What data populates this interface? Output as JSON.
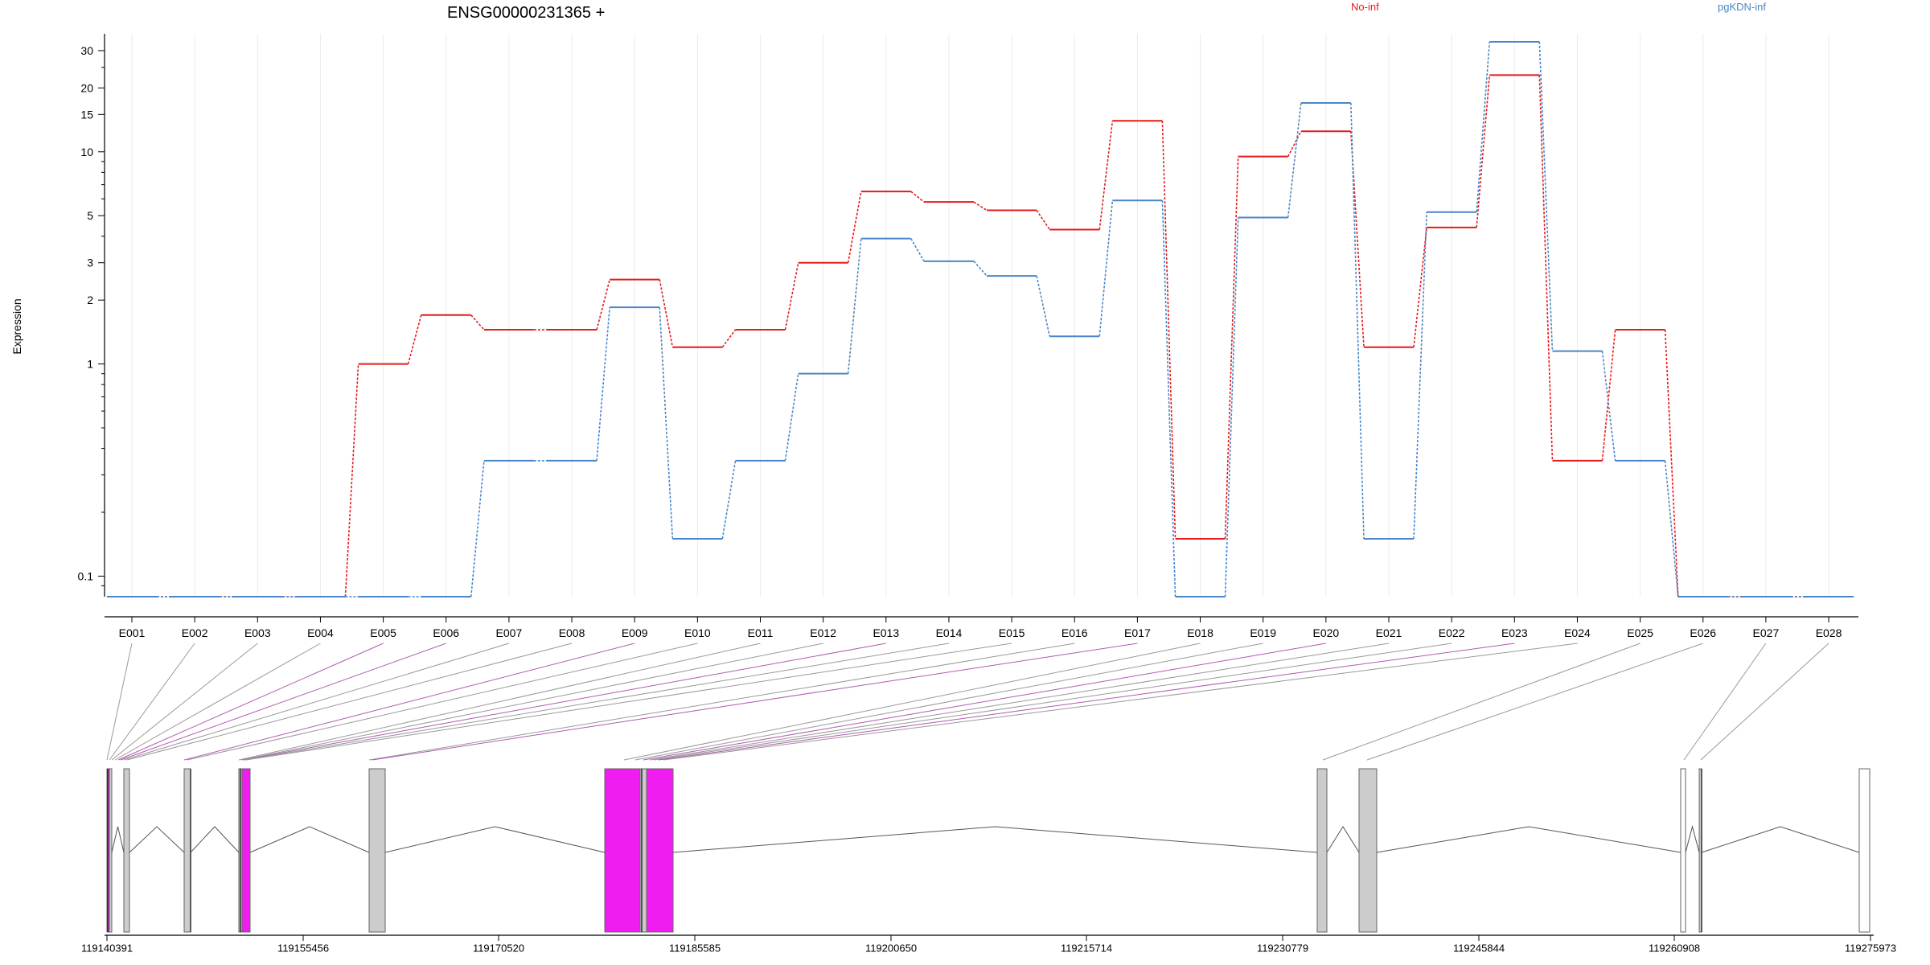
{
  "chart_data": {
    "type": "line",
    "title": "ENSG00000231365 +",
    "ylabel": "Expression",
    "xlabel": "",
    "y_scale": "log",
    "y_ticks": [
      {
        "value": 0.1,
        "label": "0.1"
      },
      {
        "value": 1,
        "label": "1"
      },
      {
        "value": 2,
        "label": "2"
      },
      {
        "value": 3,
        "label": "3"
      },
      {
        "value": 5,
        "label": "5"
      },
      {
        "value": 10,
        "label": "10"
      },
      {
        "value": 15,
        "label": "15"
      },
      {
        "value": 20,
        "label": "20"
      },
      {
        "value": 30,
        "label": "30"
      }
    ],
    "grid": "vertical",
    "legend": "top",
    "categories": [
      "E001",
      "E002",
      "E003",
      "E004",
      "E005",
      "E006",
      "E007",
      "E008",
      "E009",
      "E010",
      "E011",
      "E012",
      "E013",
      "E014",
      "E015",
      "E016",
      "E017",
      "E018",
      "E019",
      "E020",
      "E021",
      "E022",
      "E023",
      "E024",
      "E025",
      "E026",
      "E027",
      "E028"
    ],
    "series": [
      {
        "name": "No-inf",
        "color": "#e41a1c",
        "values": [
          0.08,
          0.08,
          0.08,
          0.08,
          1.0,
          1.7,
          1.45,
          1.45,
          2.5,
          1.2,
          1.45,
          3.0,
          6.5,
          5.8,
          5.3,
          4.3,
          14.0,
          0.15,
          9.5,
          12.5,
          1.2,
          4.4,
          23.0,
          0.35,
          1.45,
          0.08,
          0.08,
          0.08
        ]
      },
      {
        "name": "pgKDN-inf",
        "color": "#4a86c8",
        "values": [
          0.08,
          0.08,
          0.08,
          0.08,
          0.08,
          0.08,
          0.35,
          0.35,
          1.85,
          0.15,
          0.35,
          0.9,
          3.9,
          3.05,
          2.6,
          1.35,
          5.9,
          0.08,
          4.9,
          17.0,
          0.15,
          5.2,
          33.0,
          1.15,
          0.35,
          0.08,
          0.08,
          0.08
        ]
      }
    ],
    "gene_model": {
      "axis_ticks": [
        "119140391",
        "119155456",
        "119170520",
        "119185585",
        "119200650",
        "119215714",
        "119230779",
        "119245844",
        "119260908",
        "119275973"
      ],
      "exon_colors": {
        "normal": "#cccccc",
        "significant": "#f01df0",
        "outline": "#666666",
        "unexpressed": "#ffffff"
      },
      "connector_colors": {
        "normal": "#999999",
        "significant": "#b15ab1"
      }
    }
  }
}
